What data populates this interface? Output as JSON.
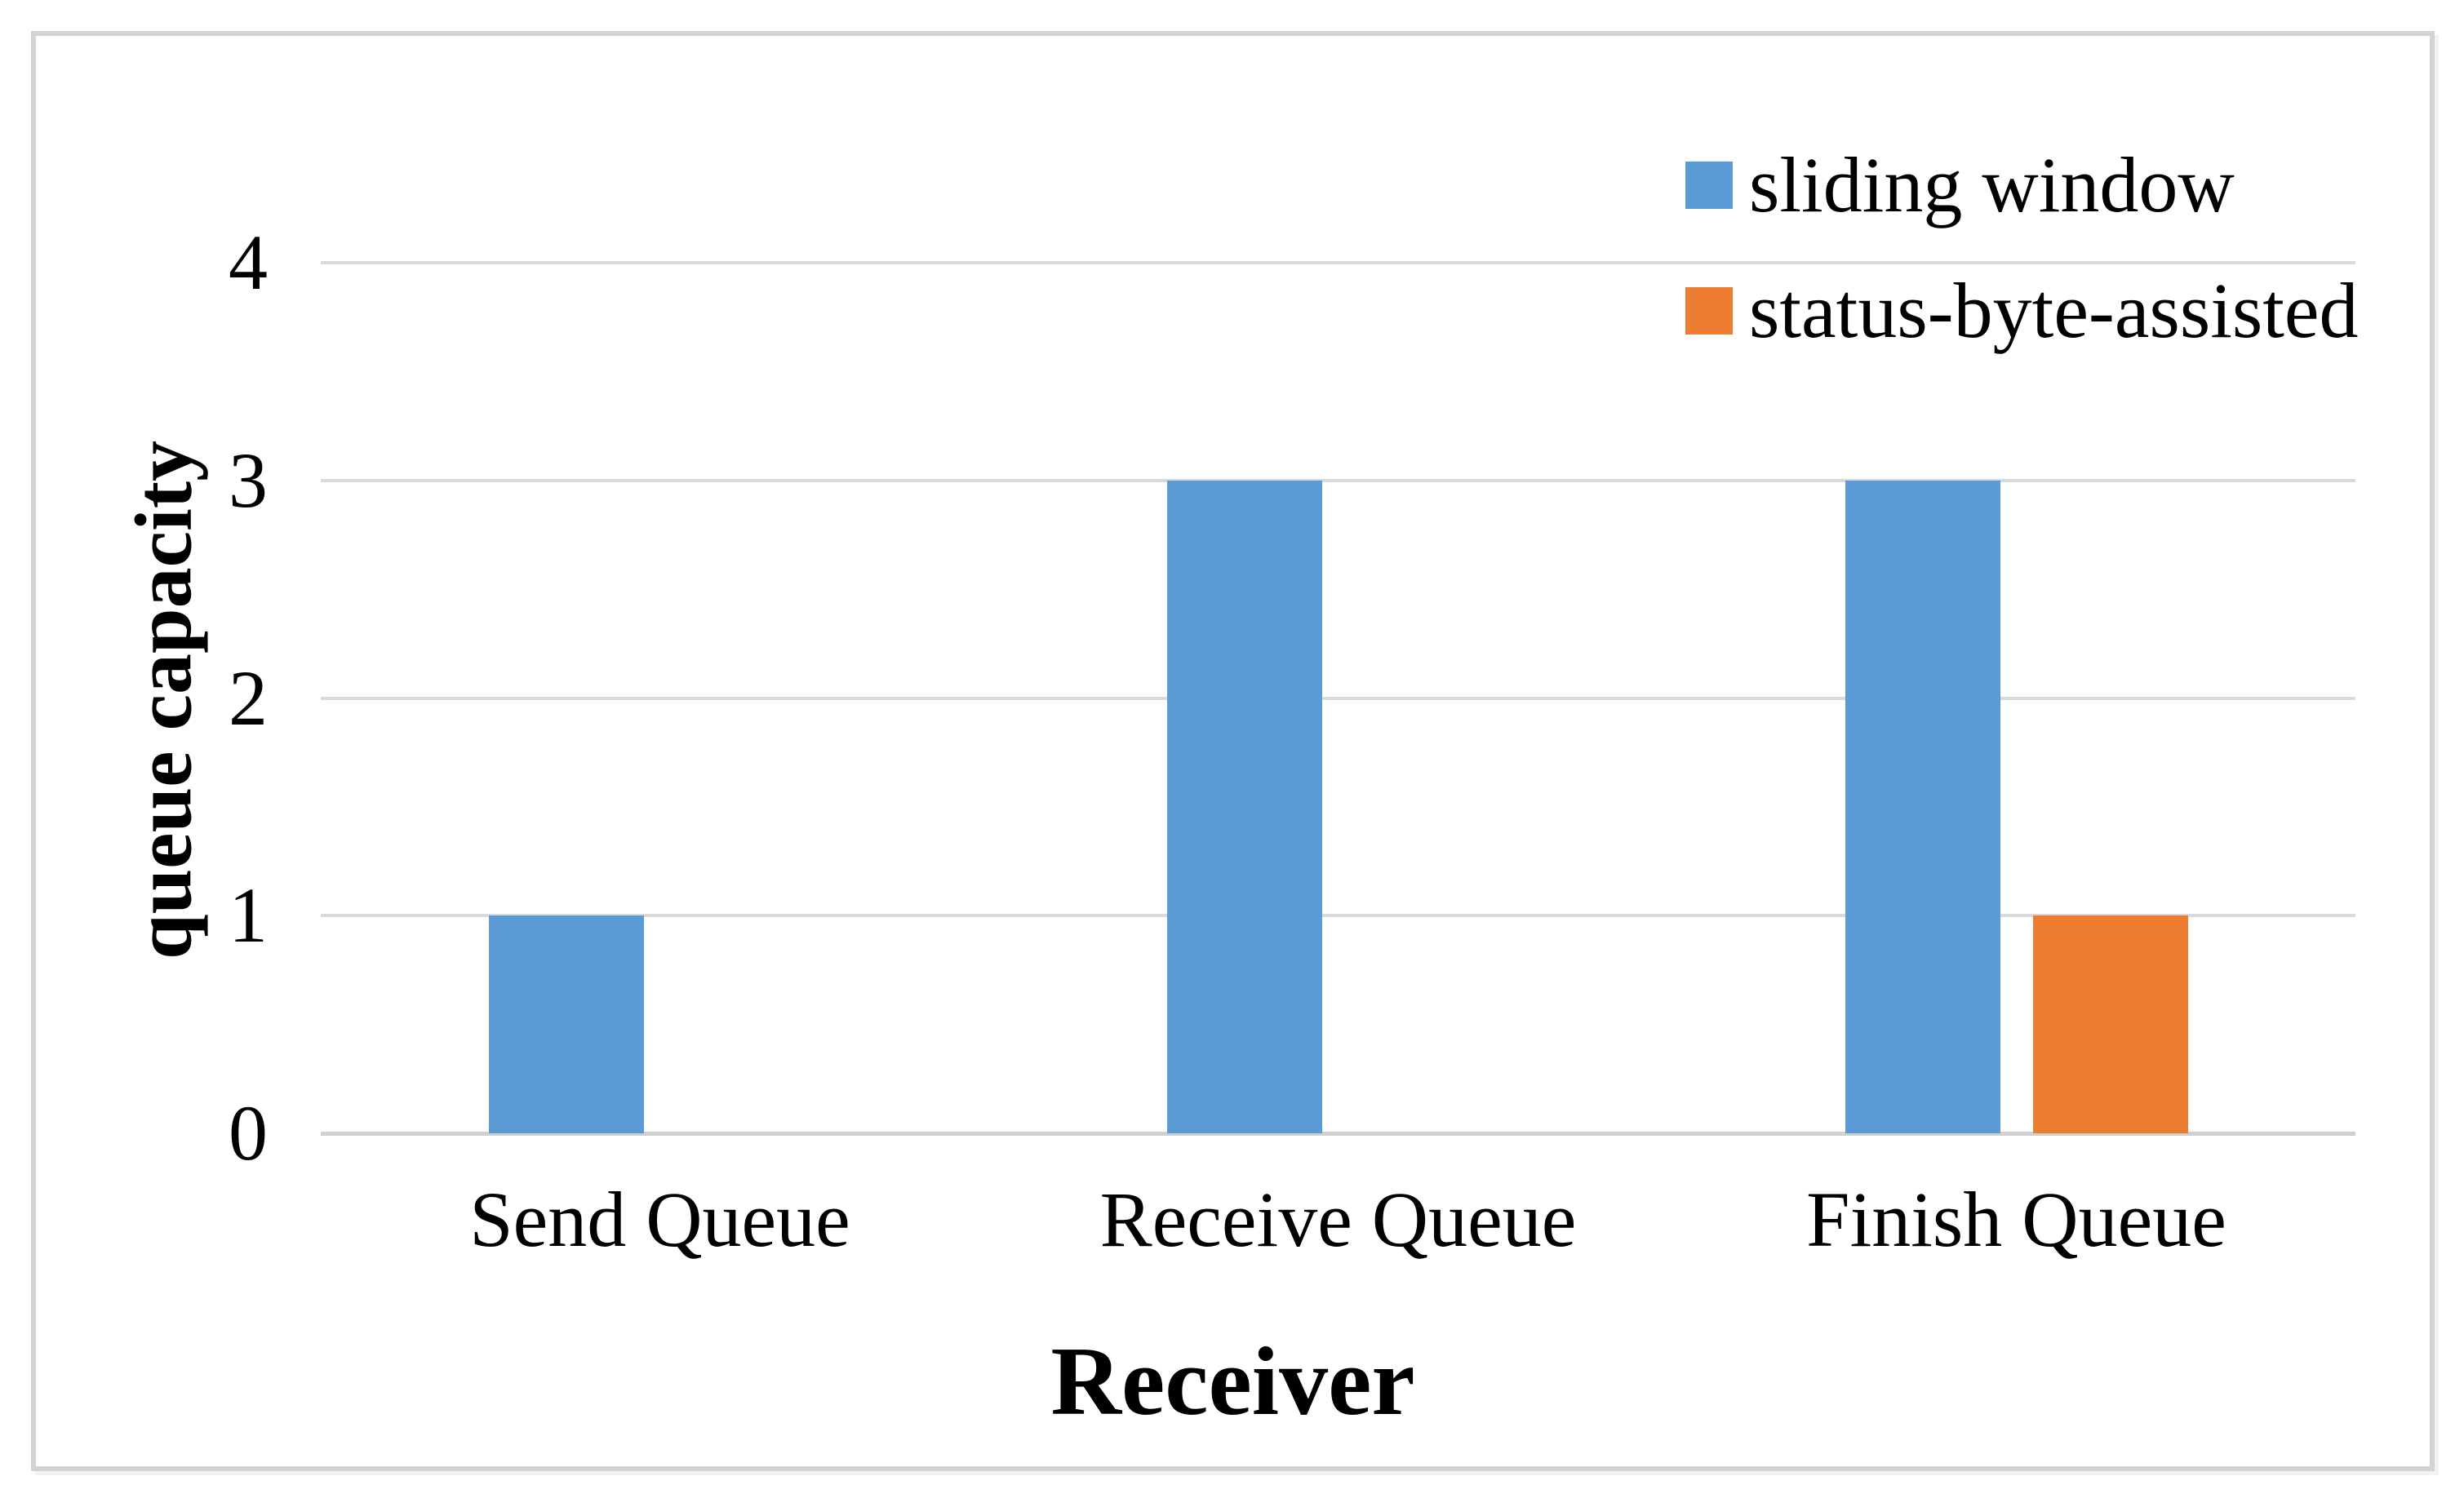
{
  "chart_data": {
    "type": "bar",
    "categories": [
      "Send Queue",
      "Receive Queue",
      "Finish Queue"
    ],
    "series": [
      {
        "name": "sliding window",
        "color": "#5B9BD5",
        "values": [
          1,
          3,
          3
        ]
      },
      {
        "name": "status-byte-assisted",
        "color": "#ED7D31",
        "values": [
          0,
          0,
          1
        ]
      }
    ],
    "title": "",
    "xlabel": "Receiver",
    "ylabel": "queue capacity",
    "ylim": [
      0,
      4
    ],
    "yticks": [
      0,
      1,
      2,
      3,
      4
    ],
    "grid": "horizontal-only",
    "legend_position": "top-right"
  },
  "style": {
    "grid_color": "#D9D9D9",
    "baseline_color": "#CFCFCF",
    "frame_border_color": "#D3D3D3",
    "text_color": "#000000",
    "background_color": "#FFFFFF"
  }
}
